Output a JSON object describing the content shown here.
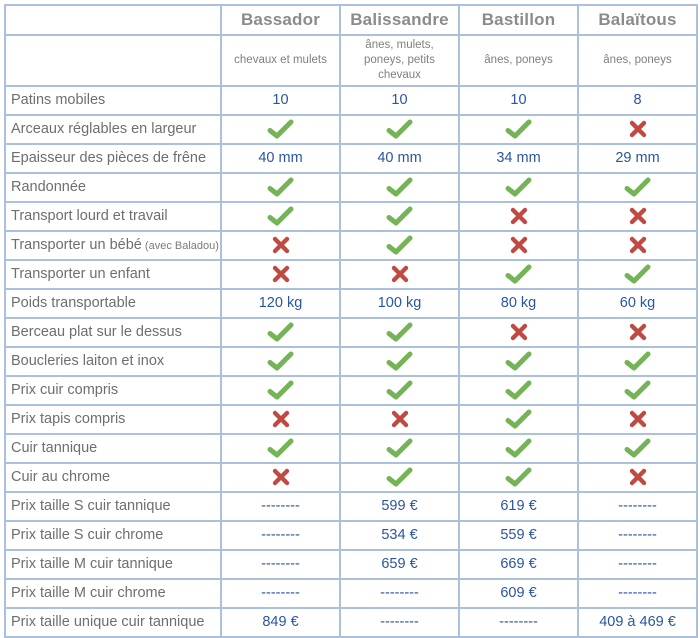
{
  "colors": {
    "border_blue": "#abc0da",
    "value_blue": "#2a55a0",
    "check_green": "#74b356",
    "cross_red": "#c04a41",
    "header_gray": "#8b8b8b",
    "label_gray": "#6e6e6e"
  },
  "icons": {
    "check": "check-icon",
    "cross": "cross-icon"
  },
  "chart_data": {
    "type": "table",
    "products": [
      {
        "name": "Bassador",
        "audience": "chevaux et mulets"
      },
      {
        "name": "Balissandre",
        "audience": "ânes, mulets, poneys, petits chevaux"
      },
      {
        "name": "Bastillon",
        "audience": "ânes, poneys"
      },
      {
        "name": "Balaïtous",
        "audience": "ânes, poneys"
      }
    ],
    "rows": [
      {
        "label": "Patins mobiles",
        "values": [
          "10",
          "10",
          "10",
          "8"
        ]
      },
      {
        "label": "Arceaux réglables en largeur",
        "values": [
          "check",
          "check",
          "check",
          "cross"
        ]
      },
      {
        "label": "Epaisseur des pièces de frêne",
        "values": [
          "40 mm",
          "40 mm",
          "34 mm",
          "29 mm"
        ]
      },
      {
        "label": "Randonnée",
        "values": [
          "check",
          "check",
          "check",
          "check"
        ]
      },
      {
        "label": "Transport lourd et travail",
        "values": [
          "check",
          "check",
          "cross",
          "cross"
        ]
      },
      {
        "label": "Transporter un bébé",
        "note": "(avec Baladou)",
        "values": [
          "cross",
          "check",
          "cross",
          "cross"
        ]
      },
      {
        "label": "Transporter un enfant",
        "values": [
          "cross",
          "cross",
          "check",
          "check"
        ]
      },
      {
        "label": "Poids transportable",
        "values": [
          "120 kg",
          "100 kg",
          "80 kg",
          "60 kg"
        ]
      },
      {
        "label": "Berceau plat sur le dessus",
        "values": [
          "check",
          "check",
          "cross",
          "cross"
        ]
      },
      {
        "label": "Boucleries laiton et inox",
        "values": [
          "check",
          "check",
          "check",
          "check"
        ]
      },
      {
        "label": "Prix cuir compris",
        "values": [
          "check",
          "check",
          "check",
          "check"
        ]
      },
      {
        "label": "Prix tapis compris",
        "values": [
          "cross",
          "cross",
          "check",
          "cross"
        ]
      },
      {
        "label": "Cuir tannique",
        "values": [
          "check",
          "check",
          "check",
          "check"
        ]
      },
      {
        "label": "Cuir au chrome",
        "values": [
          "cross",
          "check",
          "check",
          "cross"
        ]
      },
      {
        "label": "Prix taille S cuir tannique",
        "values": [
          "--------",
          "599 €",
          "619 €",
          "--------"
        ]
      },
      {
        "label": "Prix taille S cuir chrome",
        "values": [
          "--------",
          "534 €",
          "559 €",
          "--------"
        ]
      },
      {
        "label": "Prix taille M cuir tannique",
        "values": [
          "--------",
          "659 €",
          "669 €",
          "--------"
        ]
      },
      {
        "label": "Prix taille M cuir chrome",
        "values": [
          "--------",
          "--------",
          "609 €",
          "--------"
        ]
      },
      {
        "label": "Prix taille unique cuir tannique",
        "values": [
          "849 €",
          "--------",
          "--------",
          "409 à 469 €"
        ]
      }
    ]
  }
}
